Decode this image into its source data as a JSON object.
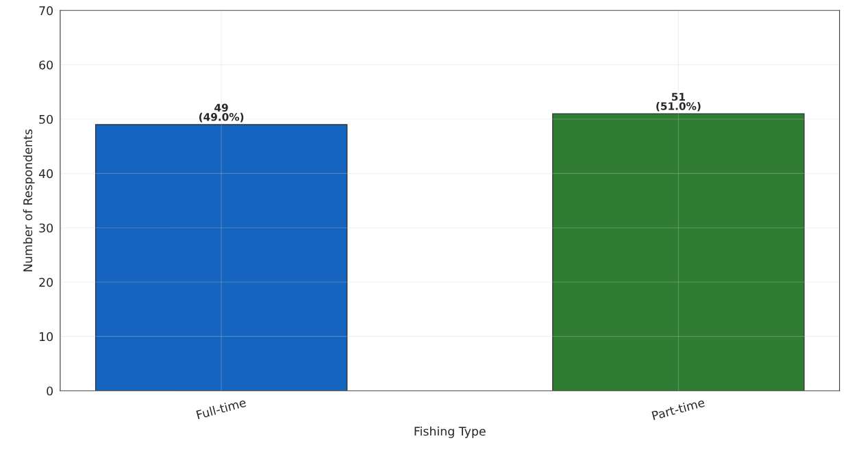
{
  "chart_data": {
    "type": "bar",
    "xlabel": "Fishing Type",
    "ylabel": "Number of Respondents",
    "categories": [
      "Full-time",
      "Part-time"
    ],
    "values": [
      49,
      51
    ],
    "colors": [
      "#1565c0",
      "#2e7d32"
    ],
    "value_labels": [
      "49\n(49.0%)",
      "51\n(51.0%)"
    ],
    "ylim": [
      0,
      70
    ],
    "yticks": [
      0,
      10,
      20,
      30,
      40,
      50,
      60,
      70
    ],
    "grid": true
  }
}
